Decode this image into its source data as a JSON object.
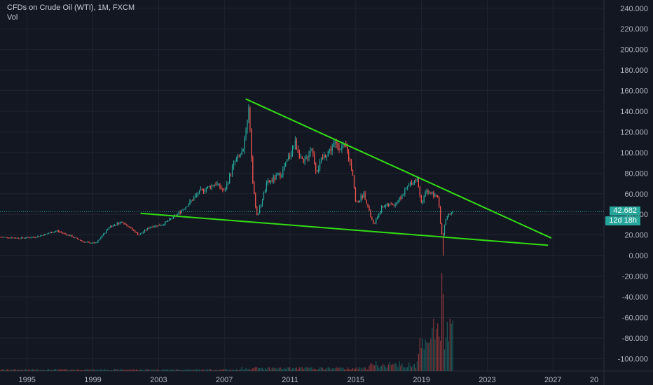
{
  "header": {
    "title": "CFDs on Crude Oil (WTI), 1M, FXCM",
    "vol_label": "Vol"
  },
  "price_tag": {
    "last": "42.682",
    "countdown": "12d 18h"
  },
  "colors": {
    "background": "#131722",
    "up": "#26a69a",
    "down": "#ef5350",
    "trendline": "#32dc14",
    "grid": "#1f2430",
    "axis_text": "#b2b5be"
  },
  "chart_data": {
    "type": "candlestick",
    "title": "CFDs on Crude Oil (WTI), 1M, FXCM",
    "y_axis": {
      "ticks": [
        "240.000",
        "220.000",
        "200.000",
        "180.000",
        "160.000",
        "140.000",
        "120.000",
        "100.000",
        "80.000",
        "60.000",
        "40.000",
        "20.000",
        "0.000",
        "-20.000",
        "-40.000",
        "-60.000",
        "-80.000",
        "-100.000"
      ],
      "range": [
        -112,
        248
      ]
    },
    "x_axis": {
      "ticks": [
        "1995",
        "1999",
        "2003",
        "2007",
        "2011",
        "2015",
        "2019",
        "2023",
        "2027",
        "20"
      ],
      "range": [
        1993.35,
        2030.1
      ]
    },
    "last_price": 42.682,
    "price_path": [
      [
        1993.4,
        18
      ],
      [
        1994.5,
        17
      ],
      [
        1995.5,
        18
      ],
      [
        1996.8,
        24
      ],
      [
        1997.5,
        20
      ],
      [
        1998.5,
        13
      ],
      [
        1999.2,
        12
      ],
      [
        2000.0,
        28
      ],
      [
        2000.8,
        33
      ],
      [
        2001.8,
        20
      ],
      [
        2002.5,
        28
      ],
      [
        2003.2,
        30
      ],
      [
        2004.0,
        38
      ],
      [
        2004.8,
        50
      ],
      [
        2005.5,
        62
      ],
      [
        2006.5,
        70
      ],
      [
        2007.0,
        62
      ],
      [
        2007.6,
        90
      ],
      [
        2008.1,
        100
      ],
      [
        2008.5,
        145
      ],
      [
        2008.75,
        65
      ],
      [
        2009.0,
        38
      ],
      [
        2009.6,
        70
      ],
      [
        2010.5,
        80
      ],
      [
        2011.3,
        110
      ],
      [
        2011.8,
        88
      ],
      [
        2012.3,
        105
      ],
      [
        2012.6,
        82
      ],
      [
        2013.0,
        95
      ],
      [
        2013.7,
        108
      ],
      [
        2014.4,
        104
      ],
      [
        2014.8,
        82
      ],
      [
        2015.0,
        50
      ],
      [
        2015.5,
        60
      ],
      [
        2015.9,
        38
      ],
      [
        2016.1,
        30
      ],
      [
        2016.6,
        48
      ],
      [
        2017.4,
        50
      ],
      [
        2017.8,
        58
      ],
      [
        2018.3,
        70
      ],
      [
        2018.75,
        74
      ],
      [
        2019.0,
        48
      ],
      [
        2019.3,
        64
      ],
      [
        2019.8,
        58
      ],
      [
        2020.0,
        58
      ],
      [
        2020.2,
        22
      ],
      [
        2020.3,
        18
      ],
      [
        2020.45,
        35
      ],
      [
        2020.7,
        40
      ],
      [
        2020.9,
        42.682
      ]
    ],
    "trendlines": [
      {
        "name": "upper",
        "points": [
          [
            2008.3,
            152
          ],
          [
            2026.9,
            17
          ]
        ]
      },
      {
        "name": "lower",
        "points": [
          [
            2001.9,
            41
          ],
          [
            2026.7,
            10
          ]
        ]
      }
    ]
  }
}
